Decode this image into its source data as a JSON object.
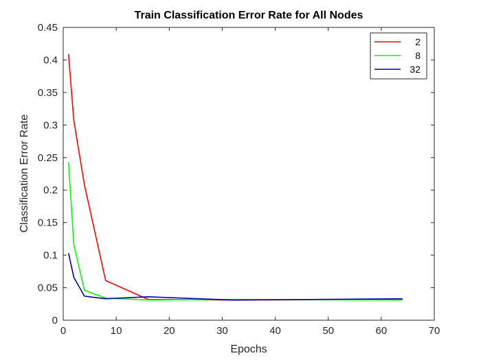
{
  "chart_data": {
    "type": "line",
    "title": "Train Classification Error Rate for All Nodes",
    "xlabel": "Epochs",
    "ylabel": "Classification Error Rate",
    "xlim": [
      0,
      70
    ],
    "ylim": [
      0,
      0.45
    ],
    "xticks": [
      0,
      10,
      20,
      30,
      40,
      50,
      60,
      70
    ],
    "yticks": [
      0,
      0.05,
      0.1,
      0.15,
      0.2,
      0.25,
      0.3,
      0.35,
      0.4,
      0.45
    ],
    "grid": false,
    "legend_position": "top-right",
    "x": [
      1,
      2,
      4,
      8,
      16,
      32,
      64
    ],
    "series": [
      {
        "name": "2",
        "color": "#ff0000",
        "values": [
          0.409,
          0.307,
          0.208,
          0.061,
          0.032,
          0.031,
          0.032
        ]
      },
      {
        "name": "8",
        "color": "#00ff00",
        "values": [
          0.243,
          0.116,
          0.046,
          0.034,
          0.031,
          0.032,
          0.031
        ]
      },
      {
        "name": "32",
        "color": "#0000aa",
        "values": [
          0.103,
          0.066,
          0.037,
          0.033,
          0.036,
          0.031,
          0.033
        ]
      }
    ]
  }
}
